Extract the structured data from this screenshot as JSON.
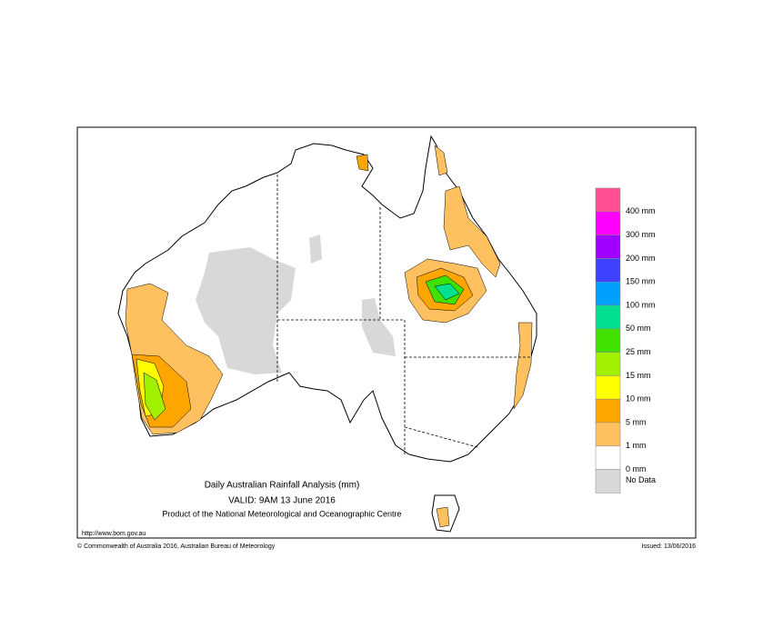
{
  "title": "Daily Australian Rainfall Analysis (mm)",
  "valid": "VALID: 9AM 13 June 2016",
  "product": "Product of the National Meteorological and Oceanographic Centre",
  "url": "http://www.bom.gov.au",
  "copyright": "© Commonwealth of Australia 2016, Australian Bureau of Meteorology",
  "issued": "Issued: 13/06/2016",
  "legend": [
    {
      "label": "400 mm",
      "color": "#ff5096"
    },
    {
      "label": "300 mm",
      "color": "#ff00ff"
    },
    {
      "label": "200 mm",
      "color": "#a000ff"
    },
    {
      "label": "150 mm",
      "color": "#4040ff"
    },
    {
      "label": "100 mm",
      "color": "#00a0ff"
    },
    {
      "label": "50 mm",
      "color": "#00e090"
    },
    {
      "label": "25 mm",
      "color": "#40e000"
    },
    {
      "label": "15 mm",
      "color": "#a0f000"
    },
    {
      "label": "10 mm",
      "color": "#ffff00"
    },
    {
      "label": "5 mm",
      "color": "#ffa500"
    },
    {
      "label": "1 mm",
      "color": "#ffc060"
    },
    {
      "label": "0 mm",
      "color": "#ffffff"
    },
    {
      "label": "No Data",
      "color": "#d8d8d8"
    }
  ]
}
